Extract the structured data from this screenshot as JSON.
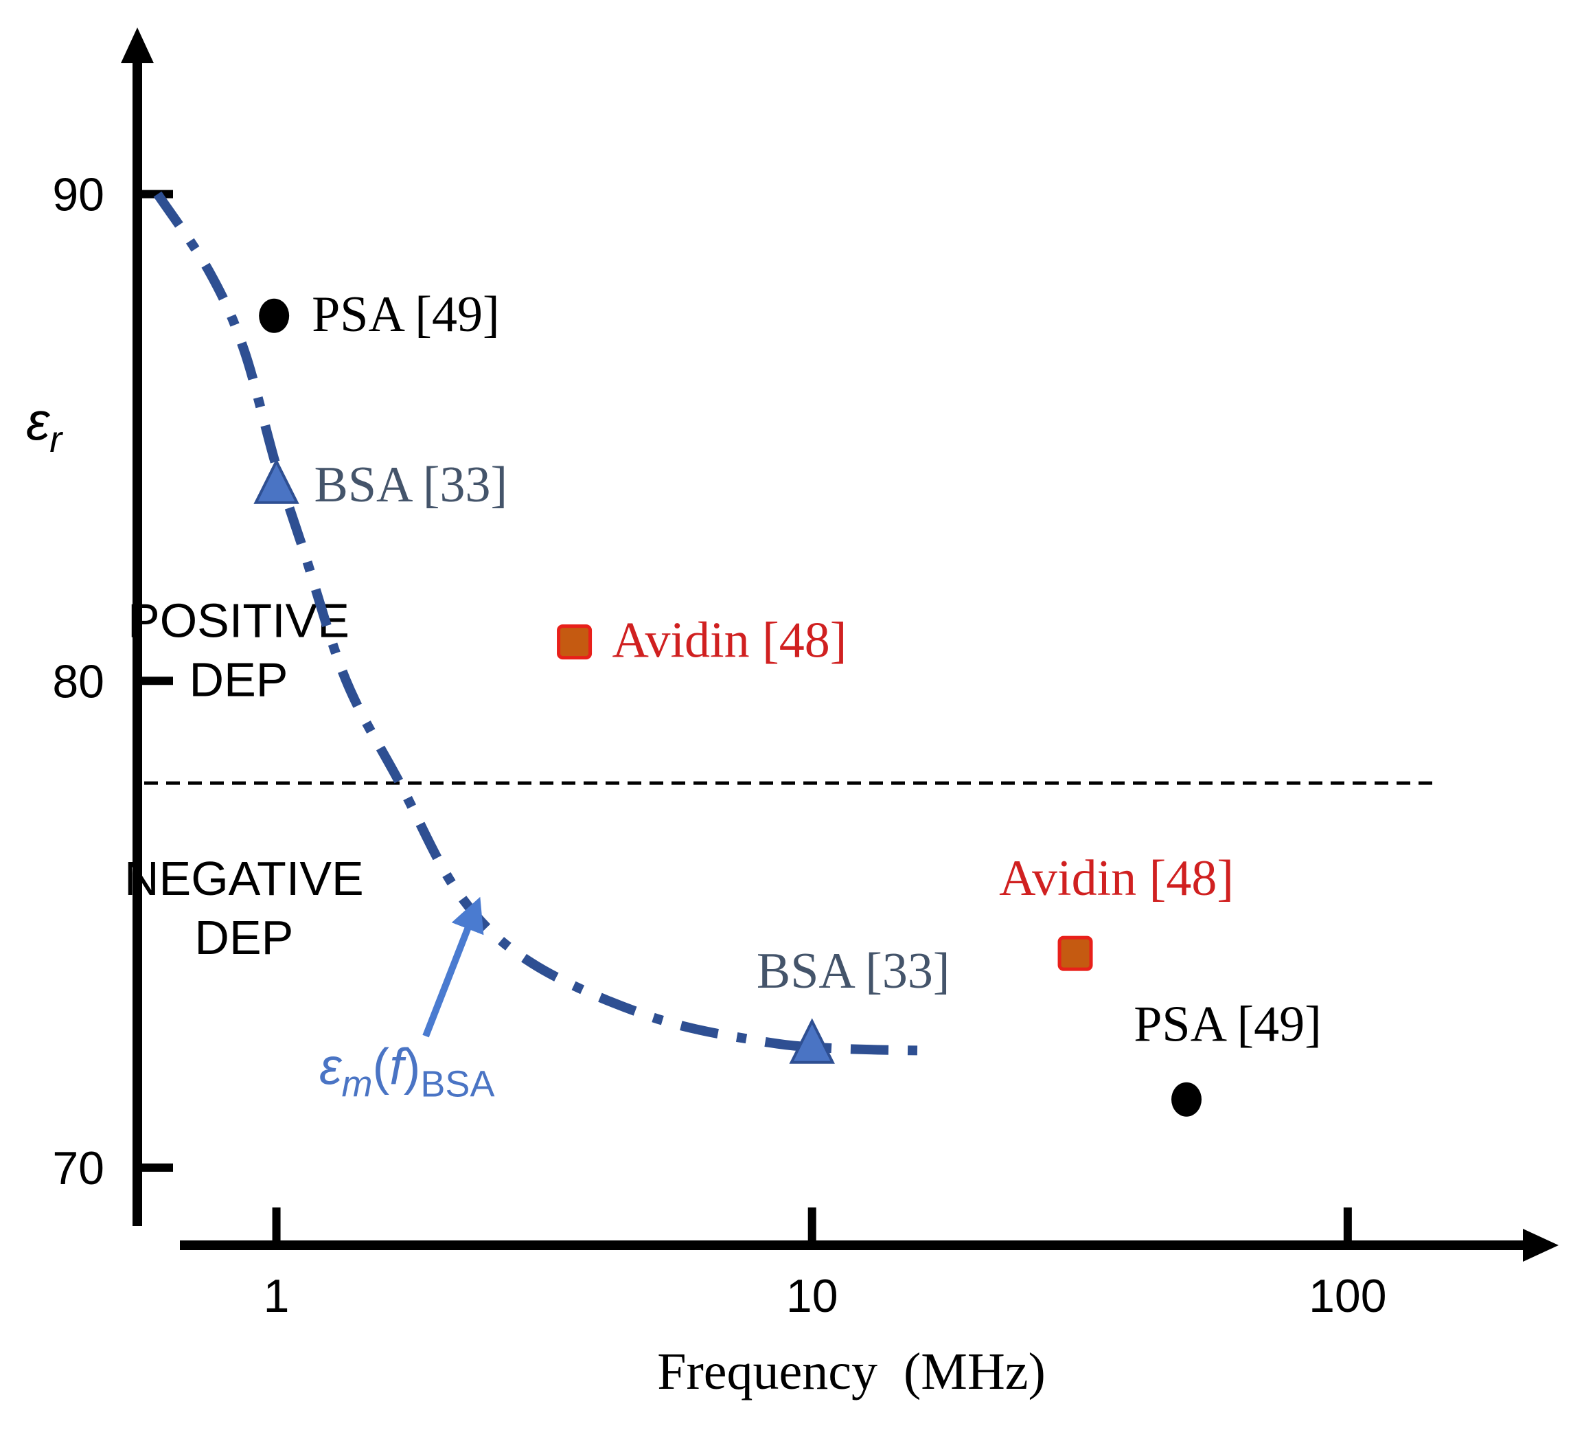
{
  "chart_data": {
    "type": "scatter",
    "x_scale": "log",
    "xlabel": "Frequency  (MHz)",
    "xlim": [
      0.55,
      220
    ],
    "x_ticks": [
      {
        "value": 1,
        "label": "1"
      },
      {
        "value": 10,
        "label": "10"
      },
      {
        "value": 100,
        "label": "100"
      }
    ],
    "ylabel": {
      "symbol": "ε",
      "sub": "r"
    },
    "ylim": [
      68.8,
      93
    ],
    "y_ticks": [
      {
        "value": 90,
        "label": "90"
      },
      {
        "value": 80,
        "label": "80"
      },
      {
        "value": 70,
        "label": "70"
      }
    ],
    "threshold": {
      "y": 77.9,
      "style": "dashed",
      "color": "#000000"
    },
    "regions": [
      {
        "name": "positive-dep",
        "lines": [
          "POSITIVE",
          "DEP"
        ],
        "x": 0.85,
        "y": 80.9
      },
      {
        "name": "negative-dep",
        "lines": [
          "NEGATIVE",
          "DEP"
        ],
        "x": 0.87,
        "y": 75.6
      }
    ],
    "curve": {
      "name": "em-bsa",
      "label": {
        "symbol": "ε",
        "sub1": "m",
        "paren_open": "(",
        "var": "f",
        "paren_close": ")",
        "sub2": "BSA"
      },
      "color": "#2e4f92",
      "style": "dash-dot",
      "points": [
        [
          0.6,
          90.0
        ],
        [
          0.75,
          88.4
        ],
        [
          0.87,
          86.8
        ],
        [
          1.0,
          84.4
        ],
        [
          1.13,
          82.6
        ],
        [
          1.35,
          80.0
        ],
        [
          1.7,
          77.9
        ],
        [
          2.2,
          75.6
        ],
        [
          3.0,
          74.2
        ],
        [
          5.0,
          73.1
        ],
        [
          8.0,
          72.6
        ],
        [
          11.0,
          72.45
        ],
        [
          17.0,
          72.4
        ]
      ],
      "arrow": {
        "from": [
          1.9,
          72.7
        ],
        "to": [
          2.35,
          75.3
        ],
        "color": "#4a7bd0"
      }
    },
    "series": [
      {
        "name": "PSA [49]",
        "marker": "circle",
        "color": "#000000",
        "label_color": "#000000",
        "points": [
          {
            "x": 0.99,
            "y": 87.5,
            "label": "PSA [49]",
            "label_pos": "right"
          },
          {
            "x": 50,
            "y": 71.4,
            "label": "PSA [49]",
            "label_pos": "above"
          }
        ]
      },
      {
        "name": "BSA [33]",
        "marker": "triangle",
        "color": "#4a74c4",
        "label_color": "#44546a",
        "points": [
          {
            "x": 1.0,
            "y": 84.0,
            "label": "BSA [33]",
            "label_pos": "right"
          },
          {
            "x": 10,
            "y": 72.5,
            "label": "BSA [33]",
            "label_pos": "above"
          }
        ]
      },
      {
        "name": "Avidin [48]",
        "marker": "square",
        "color": "#c55a11",
        "edge_color": "#e8201a",
        "label_color": "#d02020",
        "points": [
          {
            "x": 3.6,
            "y": 80.8,
            "label": "Avidin [48]",
            "label_pos": "right"
          },
          {
            "x": 31,
            "y": 74.4,
            "label": "Avidin [48]",
            "label_pos": "above"
          }
        ]
      }
    ]
  }
}
